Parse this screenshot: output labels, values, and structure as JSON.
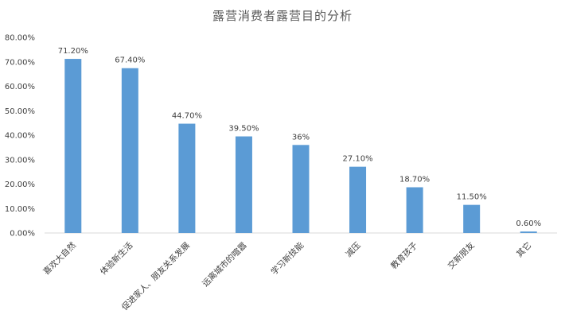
{
  "chart_data": {
    "type": "bar",
    "title": "露营消费者露营目的分析",
    "categories": [
      "喜欢大自然",
      "体验新生活",
      "促进家人、朋友关系发展",
      "远离城市的喧嚣",
      "学习新技能",
      "减压",
      "教育孩子",
      "交新朋友",
      "其它"
    ],
    "values": [
      71.2,
      67.4,
      44.7,
      39.5,
      36,
      27.1,
      18.7,
      11.5,
      0.6
    ],
    "value_labels": [
      "71.20%",
      "67.40%",
      "44.70%",
      "39.50%",
      "36%",
      "27.10%",
      "18.70%",
      "11.50%",
      "0.60%"
    ],
    "y_ticks": [
      0,
      10,
      20,
      30,
      40,
      50,
      60,
      70,
      80
    ],
    "y_tick_labels": [
      "0.00%",
      "10.00%",
      "20.00%",
      "30.00%",
      "40.00%",
      "50.00%",
      "60.00%",
      "70.00%",
      "80.00%"
    ],
    "ylim": [
      0,
      80
    ],
    "xlabel": "",
    "ylabel": "",
    "grid": false,
    "legend": "none",
    "colors": {
      "bar": "#5B9BD5",
      "axis": "#D9D9D9",
      "text": "#404040",
      "title": "#595959"
    }
  }
}
